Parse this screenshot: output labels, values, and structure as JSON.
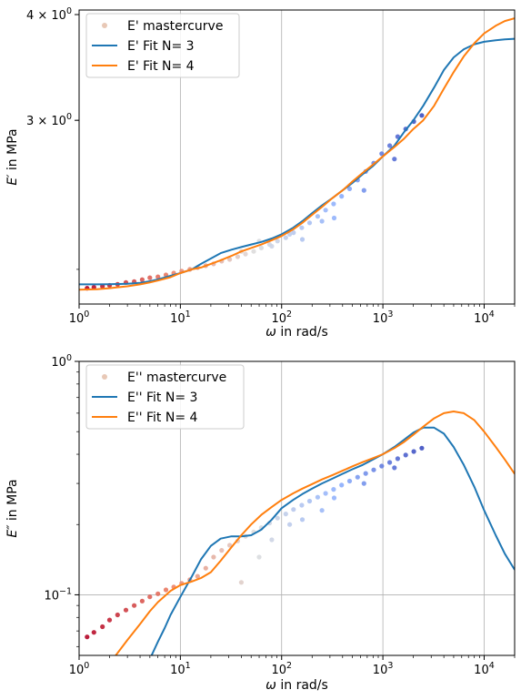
{
  "chart_data": [
    {
      "type": "line",
      "xlabel": "ω in rad/s",
      "ylabel": "E′ in MPa",
      "xscale": "log",
      "yscale": "log",
      "xlim": [
        1,
        20000
      ],
      "ylim": [
        1.82,
        4.05
      ],
      "grid": "vertical-major-only",
      "legend_position": "top-left",
      "x_tick_labels": [
        "10^0",
        "10^1",
        "10^2",
        "10^3",
        "10^4"
      ],
      "y_tick_labels": [
        "3 × 10^0",
        "4 × 10^0"
      ],
      "y_tick_values": [
        3,
        4
      ],
      "series": [
        {
          "name": "E' mastercurve",
          "kind": "scatter",
          "color_scale": "coolwarm (red at low ω, light grey at mid ω, blue at high ω)",
          "x": [
            1.2,
            1.4,
            1.7,
            2.0,
            2.4,
            2.9,
            3.5,
            4.2,
            5.0,
            6.0,
            7.2,
            8.6,
            10.3,
            12.4,
            14.8,
            17.8,
            21.3,
            25.6,
            30.7,
            36.8,
            44,
            53,
            63,
            76,
            91,
            110,
            131,
            158,
            189,
            227,
            272,
            326,
            391,
            469,
            563,
            676,
            811,
            973,
            1168,
            1401,
            1681,
            2018,
            2420,
            60,
            120,
            250,
            40,
            80,
            160,
            330,
            650,
            1300
          ],
          "y": [
            1.9,
            1.905,
            1.91,
            1.915,
            1.92,
            1.93,
            1.935,
            1.945,
            1.955,
            1.96,
            1.97,
            1.98,
            1.99,
            2.0,
            2.01,
            2.02,
            2.03,
            2.045,
            2.055,
            2.07,
            2.085,
            2.1,
            2.12,
            2.14,
            2.16,
            2.18,
            2.21,
            2.24,
            2.27,
            2.31,
            2.35,
            2.39,
            2.44,
            2.49,
            2.55,
            2.61,
            2.67,
            2.74,
            2.8,
            2.87,
            2.93,
            2.99,
            3.04,
            2.16,
            2.2,
            2.28,
            2.1,
            2.13,
            2.17,
            2.3,
            2.48,
            2.7
          ]
        },
        {
          "name": "E' Fit N= 3",
          "kind": "line",
          "color": "#1f77b4",
          "x": [
            1,
            1.5,
            2,
            3,
            4,
            5,
            6,
            8,
            10,
            13,
            16,
            20,
            25,
            32,
            40,
            50,
            63,
            80,
            100,
            130,
            160,
            200,
            250,
            320,
            400,
            500,
            630,
            800,
            1000,
            1300,
            1600,
            2000,
            2500,
            3200,
            4000,
            5000,
            6300,
            8000,
            10000,
            13000,
            16000,
            20000
          ],
          "y": [
            1.92,
            1.92,
            1.921,
            1.923,
            1.928,
            1.936,
            1.946,
            1.965,
            1.98,
            2.0,
            2.03,
            2.06,
            2.09,
            2.11,
            2.125,
            2.14,
            2.155,
            2.175,
            2.2,
            2.24,
            2.28,
            2.33,
            2.38,
            2.43,
            2.48,
            2.53,
            2.59,
            2.65,
            2.72,
            2.8,
            2.9,
            3.0,
            3.12,
            3.28,
            3.44,
            3.56,
            3.64,
            3.69,
            3.715,
            3.73,
            3.74,
            3.745
          ]
        },
        {
          "name": "E' Fit N= 4",
          "kind": "line",
          "color": "#ff7f0e",
          "x": [
            1,
            1.5,
            2,
            3,
            4,
            5,
            6,
            8,
            10,
            13,
            16,
            20,
            25,
            32,
            40,
            50,
            63,
            80,
            100,
            130,
            160,
            200,
            250,
            320,
            400,
            500,
            630,
            800,
            1000,
            1300,
            1600,
            2000,
            2500,
            3200,
            4000,
            5000,
            6300,
            8000,
            10000,
            13000,
            16000,
            20000
          ],
          "y": [
            1.892,
            1.895,
            1.9,
            1.91,
            1.92,
            1.93,
            1.94,
            1.958,
            1.98,
            2.0,
            2.01,
            2.03,
            2.05,
            2.075,
            2.1,
            2.12,
            2.14,
            2.165,
            2.19,
            2.23,
            2.27,
            2.32,
            2.37,
            2.43,
            2.48,
            2.54,
            2.6,
            2.66,
            2.72,
            2.79,
            2.85,
            2.93,
            3.0,
            3.12,
            3.27,
            3.42,
            3.57,
            3.7,
            3.8,
            3.88,
            3.93,
            3.96
          ]
        }
      ]
    },
    {
      "type": "line",
      "xlabel": "ω in rad/s",
      "ylabel": "E″ in MPa",
      "xscale": "log",
      "yscale": "log",
      "xlim": [
        1,
        20000
      ],
      "ylim": [
        0.055,
        1.0
      ],
      "grid": "major-both",
      "legend_position": "top-left",
      "x_tick_labels": [
        "10^0",
        "10^1",
        "10^2",
        "10^3",
        "10^4"
      ],
      "y_tick_labels": [
        "10^−1",
        "10^0"
      ],
      "y_tick_values": [
        0.1,
        1.0
      ],
      "series": [
        {
          "name": "E'' mastercurve",
          "kind": "scatter",
          "color_scale": "coolwarm (red at low ω, light grey at mid ω, blue at high ω)",
          "x": [
            1.2,
            1.4,
            1.7,
            2.0,
            2.4,
            2.9,
            3.5,
            4.2,
            5.0,
            6.0,
            7.2,
            8.6,
            10.3,
            12.4,
            14.8,
            17.8,
            21.3,
            25.6,
            30.7,
            36.8,
            44,
            53,
            63,
            76,
            91,
            110,
            131,
            158,
            189,
            227,
            272,
            326,
            391,
            469,
            563,
            676,
            811,
            973,
            1168,
            1401,
            1681,
            2018,
            2420,
            40,
            60,
            80,
            120,
            250,
            160,
            330,
            650,
            1300
          ],
          "y": [
            0.066,
            0.069,
            0.073,
            0.078,
            0.082,
            0.086,
            0.09,
            0.094,
            0.098,
            0.101,
            0.105,
            0.108,
            0.112,
            0.116,
            0.12,
            0.13,
            0.145,
            0.155,
            0.163,
            0.17,
            0.178,
            0.186,
            0.194,
            0.203,
            0.213,
            0.222,
            0.232,
            0.242,
            0.252,
            0.262,
            0.272,
            0.283,
            0.295,
            0.307,
            0.319,
            0.331,
            0.343,
            0.356,
            0.369,
            0.383,
            0.397,
            0.411,
            0.425,
            0.113,
            0.145,
            0.172,
            0.2,
            0.23,
            0.21,
            0.26,
            0.3,
            0.35
          ]
        },
        {
          "name": "E'' Fit N= 3",
          "kind": "line",
          "color": "#1f77b4",
          "x": [
            5.2,
            6,
            7,
            8,
            10,
            13,
            16,
            20,
            25,
            32,
            40,
            50,
            63,
            80,
            100,
            130,
            160,
            200,
            250,
            320,
            400,
            500,
            630,
            800,
            1000,
            1300,
            1600,
            2000,
            2500,
            3200,
            4000,
            5000,
            6300,
            8000,
            10000,
            13000,
            16000,
            20000
          ],
          "y": [
            0.055,
            0.063,
            0.072,
            0.082,
            0.098,
            0.12,
            0.142,
            0.162,
            0.174,
            0.178,
            0.178,
            0.18,
            0.19,
            0.21,
            0.235,
            0.255,
            0.27,
            0.285,
            0.3,
            0.315,
            0.33,
            0.345,
            0.36,
            0.38,
            0.4,
            0.43,
            0.46,
            0.495,
            0.52,
            0.52,
            0.49,
            0.43,
            0.36,
            0.29,
            0.23,
            0.18,
            0.15,
            0.128
          ]
        },
        {
          "name": "E'' Fit N= 4",
          "kind": "line",
          "color": "#ff7f0e",
          "x": [
            2.3,
            3,
            4,
            5,
            6,
            8,
            10,
            13,
            16,
            20,
            25,
            32,
            40,
            50,
            63,
            80,
            100,
            130,
            160,
            200,
            250,
            320,
            400,
            500,
            630,
            800,
            1000,
            1300,
            1600,
            2000,
            2500,
            3200,
            4000,
            5000,
            6300,
            8000,
            10000,
            13000,
            16000,
            20000
          ],
          "y": [
            0.055,
            0.064,
            0.075,
            0.085,
            0.093,
            0.104,
            0.11,
            0.114,
            0.118,
            0.125,
            0.14,
            0.16,
            0.18,
            0.2,
            0.22,
            0.238,
            0.255,
            0.272,
            0.285,
            0.298,
            0.312,
            0.326,
            0.34,
            0.355,
            0.37,
            0.385,
            0.4,
            0.425,
            0.45,
            0.485,
            0.525,
            0.57,
            0.6,
            0.61,
            0.6,
            0.56,
            0.5,
            0.43,
            0.38,
            0.33
          ]
        }
      ]
    }
  ]
}
